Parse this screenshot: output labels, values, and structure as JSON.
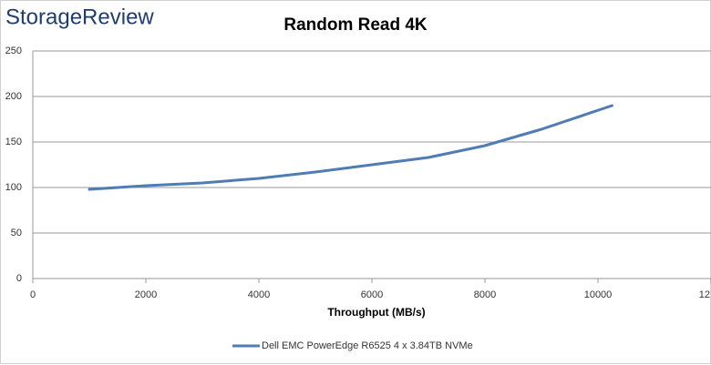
{
  "chart_data": {
    "type": "line",
    "brand": "StorageReview",
    "title": "Random Read 4K",
    "x_label": "Throughput (MB/s)",
    "x": [
      1000,
      2000,
      3000,
      4000,
      5000,
      6000,
      7000,
      8000,
      9000,
      10250
    ],
    "series": [
      {
        "name": "Dell EMC PowerEdge R6525 4 x 3.84TB NVMe",
        "color": "#4f7cb5",
        "values": [
          98,
          102,
          105,
          110,
          117,
          125,
          133,
          146,
          164,
          190
        ]
      }
    ],
    "xlim": [
      0,
      12000
    ],
    "xticks": [
      0,
      2000,
      4000,
      6000,
      8000,
      10000,
      {
        "value": 12000,
        "label": "12"
      }
    ],
    "ylim": [
      0,
      250
    ],
    "yticks": [
      0,
      50,
      100,
      150,
      200,
      250
    ],
    "grid": true,
    "legend": "bottom"
  }
}
